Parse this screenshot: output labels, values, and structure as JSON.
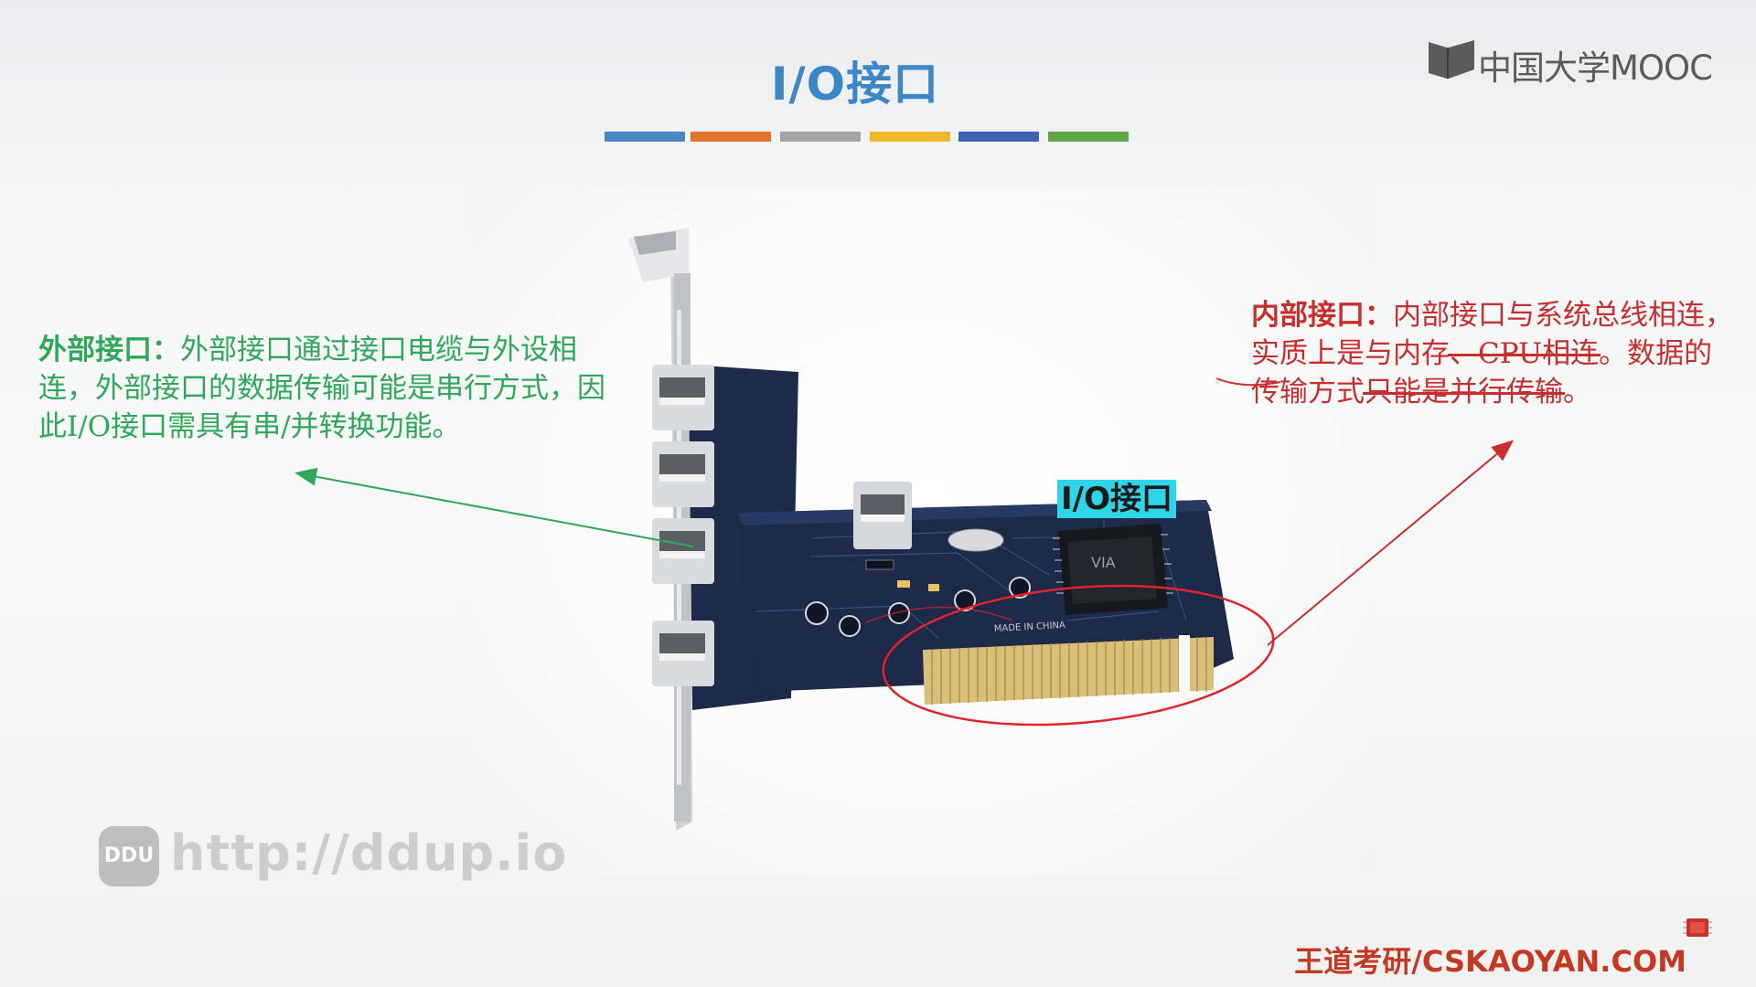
{
  "slide": {
    "title": "I/O接口",
    "title_bar_colors": [
      "#4a87c4",
      "#e0742c",
      "#a3a3a3",
      "#efb82a",
      "#3f63b4",
      "#5fa847"
    ]
  },
  "logo": {
    "text": "中国大学MOOC"
  },
  "photo": {
    "highlight_label": "I/O接口",
    "board_print": "MADE IN CHINA"
  },
  "external_note": {
    "term": "外部接口",
    "colon": "：",
    "body": "外部接口通过接口电缆与外设相连，外部接口的数据传输可能是串行方式，因此I/O接口需具有串/并转换功能。",
    "color": "#2fa85a"
  },
  "internal_note": {
    "term": "内部接口",
    "colon": "：",
    "body_1": "内部接口与系统总线相连，实质上是与内存",
    "struck_1": "、CPU相连",
    "body_2": "。数据的传输方式",
    "struck_2": "只能是并行传输",
    "body_3": "。",
    "color": "#c72e2e"
  },
  "watermark": {
    "badge": "DDU",
    "url": "http://ddup.io"
  },
  "footer": {
    "text": "王道考研/CSKAOYAN.COM"
  }
}
